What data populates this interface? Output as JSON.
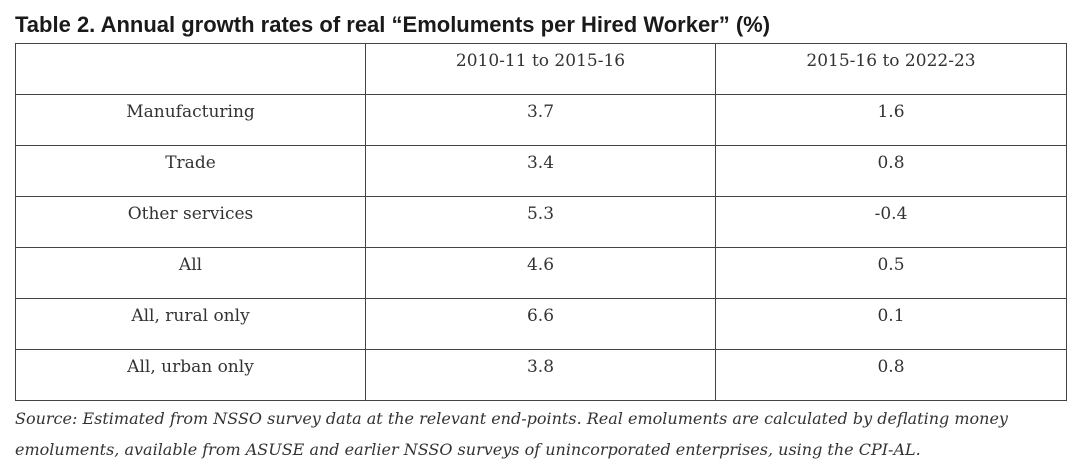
{
  "title": "Table 2. Annual growth rates of real “Emoluments per Hired Worker” (%)",
  "table": {
    "headers": [
      "",
      "2010-11 to 2015-16",
      "2015-16 to 2022-23"
    ],
    "rows": [
      {
        "label": "Manufacturing",
        "v1": "3.7",
        "v2": "1.6"
      },
      {
        "label": "Trade",
        "v1": "3.4",
        "v2": "0.8"
      },
      {
        "label": "Other services",
        "v1": "5.3",
        "v2": "-0.4"
      },
      {
        "label": "All",
        "v1": "4.6",
        "v2": "0.5"
      },
      {
        "label": "All, rural only",
        "v1": "6.6",
        "v2": "0.1"
      },
      {
        "label": "All, urban only",
        "v1": "3.8",
        "v2": "0.8"
      }
    ]
  },
  "source": "Source: Estimated from NSSO survey data at the relevant end-points. Real emoluments are calculated by deflating money emoluments, available from ASUSE and earlier NSSO surveys of unincorporated enterprises, using the CPI-AL."
}
